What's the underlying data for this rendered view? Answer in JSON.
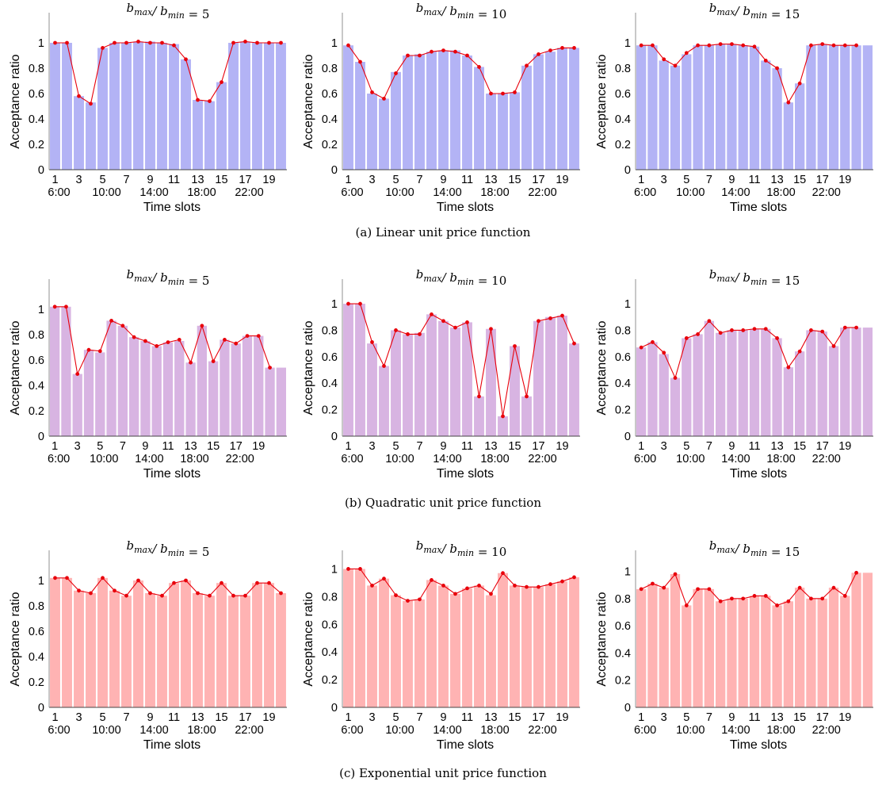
{
  "rows": [
    {
      "caption": "(a) Linear unit price function",
      "bar_color": "#b3b3f5",
      "charts": [
        {
          "title": "b_max / b_min = 5",
          "ratio": "5"
        },
        {
          "title": "b_max / b_min = 10",
          "ratio": "10"
        },
        {
          "title": "b_max / b_min = 15",
          "ratio": "15"
        }
      ]
    },
    {
      "caption": "(b) Quadratic unit price function",
      "bar_color": "#d8b4e2",
      "charts": [
        {
          "title": "b_max / b_min = 5",
          "ratio": "5"
        },
        {
          "title": "b_max / b_min = 10",
          "ratio": "10"
        },
        {
          "title": "b_max / b_min = 15",
          "ratio": "15"
        }
      ]
    },
    {
      "caption": "(c) Exponential unit price function",
      "bar_color": "#ffb3b3",
      "charts": [
        {
          "title": "b_max / b_min = 5",
          "ratio": "5"
        },
        {
          "title": "b_max / b_min = 10",
          "ratio": "10"
        },
        {
          "title": "b_max / b_min = 15",
          "ratio": "15"
        }
      ]
    }
  ],
  "line_color": "#e8000b",
  "chart_data": [
    {
      "type": "bar",
      "row": "(a) Linear unit price function",
      "title": "b_max / b_min = 5",
      "xlabel": "Time slots",
      "ylabel": "Acceptance ratio",
      "ylim": [
        0,
        1.2
      ],
      "yticks": [
        "0",
        "0.2",
        "0.4",
        "0.6",
        "0.8",
        "1"
      ],
      "xticks": [
        "1",
        "3",
        "5",
        "7",
        "9",
        "11",
        "13",
        "15",
        "17",
        "19"
      ],
      "xticks2": [
        "6:00",
        "10:00",
        "14:00",
        "18:00",
        "22:00"
      ],
      "categories": [
        1,
        2,
        3,
        4,
        5,
        6,
        7,
        8,
        9,
        10,
        11,
        12,
        13,
        14,
        15,
        16,
        17,
        18,
        19,
        20
      ],
      "values": [
        1.0,
        1.0,
        0.58,
        0.53,
        0.96,
        1.0,
        1.0,
        1.01,
        1.01,
        1.0,
        0.99,
        0.87,
        0.55,
        0.54,
        0.69,
        1.0,
        1.01,
        1.0,
        1.0,
        1.0
      ],
      "line": [
        1.0,
        1.0,
        0.58,
        0.52,
        0.96,
        1.0,
        1.0,
        1.01,
        1.0,
        1.0,
        0.98,
        0.87,
        0.55,
        0.54,
        0.69,
        1.0,
        1.01,
        1.0,
        1.0,
        1.0
      ]
    },
    {
      "type": "bar",
      "row": "(a) Linear unit price function",
      "title": "b_max / b_min = 10",
      "xlabel": "Time slots",
      "ylabel": "Acceptance ratio",
      "ylim": [
        0,
        1.2
      ],
      "yticks": [
        "0",
        "0.2",
        "0.4",
        "0.6",
        "0.8",
        "1"
      ],
      "xticks": [
        "1",
        "3",
        "5",
        "7",
        "9",
        "11",
        "13",
        "15",
        "17",
        "19"
      ],
      "xticks2": [
        "6:00",
        "10:00",
        "14:00",
        "18:00",
        "22:00"
      ],
      "categories": [
        1,
        2,
        3,
        4,
        5,
        6,
        7,
        8,
        9,
        10,
        11,
        12,
        13,
        14,
        15,
        16,
        17,
        18,
        19,
        20
      ],
      "values": [
        0.98,
        0.85,
        0.6,
        0.56,
        0.77,
        0.9,
        0.91,
        0.93,
        0.94,
        0.94,
        0.9,
        0.81,
        0.6,
        0.6,
        0.61,
        0.82,
        0.91,
        0.93,
        0.96,
        0.96
      ],
      "line": [
        0.98,
        0.85,
        0.61,
        0.56,
        0.76,
        0.9,
        0.9,
        0.93,
        0.94,
        0.93,
        0.9,
        0.81,
        0.6,
        0.6,
        0.61,
        0.82,
        0.91,
        0.94,
        0.96,
        0.96
      ]
    },
    {
      "type": "bar",
      "row": "(a) Linear unit price function",
      "title": "b_max / b_min = 15",
      "xlabel": "Time slots",
      "ylabel": "Acceptance ratio",
      "ylim": [
        0,
        1.2
      ],
      "yticks": [
        "0",
        "0.2",
        "0.4",
        "0.6",
        "0.8",
        "1"
      ],
      "xticks": [
        "1",
        "3",
        "5",
        "7",
        "9",
        "11",
        "13",
        "15",
        "17",
        "19"
      ],
      "xticks2": [
        "6:00",
        "10:00",
        "14:00",
        "18:00",
        "22:00"
      ],
      "categories": [
        1,
        2,
        3,
        4,
        5,
        6,
        7,
        8,
        9,
        10,
        11,
        12,
        13,
        14,
        15,
        16,
        17,
        18,
        19,
        20,
        21
      ],
      "values": [
        0.98,
        0.98,
        0.86,
        0.82,
        0.91,
        0.98,
        0.98,
        0.99,
        0.99,
        0.98,
        0.97,
        0.86,
        0.8,
        0.53,
        0.68,
        0.98,
        0.99,
        0.98,
        0.98,
        0.98,
        0.98
      ],
      "line": [
        0.98,
        0.98,
        0.87,
        0.82,
        0.92,
        0.98,
        0.98,
        0.99,
        0.99,
        0.98,
        0.97,
        0.86,
        0.8,
        0.53,
        0.68,
        0.98,
        0.99,
        0.98,
        0.98,
        0.98,
        null
      ]
    },
    {
      "type": "bar",
      "row": "(b) Quadratic unit price function",
      "title": "b_max / b_min = 5",
      "xlabel": "Time slots",
      "ylabel": "Acceptance ratio",
      "ylim": [
        0,
        1.2
      ],
      "yticks": [
        "0",
        "0.2",
        "0.4",
        "0.6",
        "0.8",
        "1"
      ],
      "xticks": [
        "1",
        "3",
        "5",
        "7",
        "9",
        "11",
        "13",
        "15",
        "17",
        "19"
      ],
      "xticks2": [
        "6:00",
        "10:00",
        "14:00",
        "18:00",
        "22:00"
      ],
      "categories": [
        1,
        2,
        3,
        4,
        5,
        6,
        7,
        8,
        9,
        10,
        11,
        12,
        13,
        14,
        15,
        16,
        17,
        18,
        19,
        20,
        21
      ],
      "values": [
        1.02,
        1.02,
        0.49,
        0.68,
        0.66,
        0.91,
        0.87,
        0.78,
        0.75,
        0.71,
        0.74,
        0.75,
        0.58,
        0.87,
        0.59,
        0.76,
        0.73,
        0.79,
        0.79,
        0.54,
        0.54
      ],
      "line": [
        1.02,
        1.02,
        0.49,
        0.68,
        0.67,
        0.91,
        0.87,
        0.78,
        0.75,
        0.71,
        0.74,
        0.76,
        0.58,
        0.87,
        0.59,
        0.76,
        0.73,
        0.79,
        0.79,
        0.54,
        null
      ]
    },
    {
      "type": "bar",
      "row": "(b) Quadratic unit price function",
      "title": "b_max / b_min = 10",
      "xlabel": "Time slots",
      "ylabel": "Acceptance ratio",
      "ylim": [
        0,
        1.15
      ],
      "yticks": [
        "0",
        "0.2",
        "0.4",
        "0.6",
        "0.8",
        "1"
      ],
      "xticks": [
        "1",
        "3",
        "5",
        "7",
        "9",
        "11",
        "13",
        "15",
        "17",
        "19"
      ],
      "xticks2": [
        "6:00",
        "10:00",
        "14:00",
        "18:00",
        "22:00"
      ],
      "categories": [
        1,
        2,
        3,
        4,
        5,
        6,
        7,
        8,
        9,
        10,
        11,
        12,
        13,
        14,
        15,
        16,
        17,
        18,
        19,
        20
      ],
      "values": [
        1.0,
        1.0,
        0.7,
        0.53,
        0.8,
        0.77,
        0.78,
        0.92,
        0.87,
        0.82,
        0.86,
        0.3,
        0.81,
        0.15,
        0.68,
        0.3,
        0.87,
        0.9,
        0.91,
        0.7
      ],
      "line": [
        1.0,
        1.0,
        0.71,
        0.53,
        0.8,
        0.77,
        0.77,
        0.92,
        0.87,
        0.82,
        0.86,
        0.3,
        0.81,
        0.15,
        0.68,
        0.3,
        0.87,
        0.89,
        0.91,
        0.7
      ]
    },
    {
      "type": "bar",
      "row": "(b) Quadratic unit price function",
      "title": "b_max / b_min = 15",
      "xlabel": "Time slots",
      "ylabel": "Acceptance ratio",
      "ylim": [
        0,
        1.15
      ],
      "yticks": [
        "0",
        "0.2",
        "0.4",
        "0.6",
        "0.8",
        "1"
      ],
      "xticks": [
        "1",
        "3",
        "5",
        "7",
        "9",
        "11",
        "13",
        "15",
        "17",
        "19"
      ],
      "xticks2": [
        "6:00",
        "10:00",
        "14:00",
        "18:00",
        "22:00"
      ],
      "categories": [
        1,
        2,
        3,
        4,
        5,
        6,
        7,
        8,
        9,
        10,
        11,
        12,
        13,
        14,
        15,
        16,
        17,
        18,
        19,
        20,
        21
      ],
      "values": [
        0.67,
        0.71,
        0.62,
        0.44,
        0.74,
        0.77,
        0.87,
        0.78,
        0.8,
        0.8,
        0.81,
        0.81,
        0.74,
        0.52,
        0.64,
        0.8,
        0.79,
        0.68,
        0.82,
        0.82,
        0.82
      ],
      "line": [
        0.67,
        0.71,
        0.63,
        0.44,
        0.74,
        0.77,
        0.87,
        0.78,
        0.8,
        0.8,
        0.81,
        0.81,
        0.74,
        0.52,
        0.64,
        0.8,
        0.79,
        0.68,
        0.82,
        0.82,
        null
      ]
    },
    {
      "type": "bar",
      "row": "(c) Exponential unit price function",
      "title": "b_max / b_min = 5",
      "xlabel": "Time slots",
      "ylabel": "Acceptance ratio",
      "ylim": [
        0,
        1.2
      ],
      "yticks": [
        "0",
        "0.2",
        "0.4",
        "0.6",
        "0.8",
        "1"
      ],
      "xticks": [
        "1",
        "3",
        "5",
        "7",
        "9",
        "11",
        "13",
        "15",
        "17",
        "19"
      ],
      "xticks2": [
        "6:00",
        "10:00",
        "14:00",
        "18:00",
        "22:00"
      ],
      "categories": [
        1,
        2,
        3,
        4,
        5,
        6,
        7,
        8,
        9,
        10,
        11,
        12,
        13,
        14,
        15,
        16,
        17,
        18,
        19,
        20
      ],
      "values": [
        1.02,
        1.02,
        0.92,
        0.9,
        1.02,
        0.92,
        0.88,
        1.0,
        0.9,
        0.88,
        0.98,
        1.0,
        0.9,
        0.88,
        0.98,
        0.88,
        0.88,
        0.98,
        0.98,
        0.9
      ],
      "line": [
        1.02,
        1.02,
        0.92,
        0.9,
        1.02,
        0.92,
        0.88,
        1.0,
        0.9,
        0.88,
        0.98,
        1.0,
        0.9,
        0.88,
        0.98,
        0.88,
        0.88,
        0.98,
        0.98,
        0.9
      ]
    },
    {
      "type": "bar",
      "row": "(c) Exponential unit price function",
      "title": "b_max / b_min = 10",
      "xlabel": "Time slots",
      "ylabel": "Acceptance ratio",
      "ylim": [
        0,
        1.1
      ],
      "yticks": [
        "0",
        "0.2",
        "0.4",
        "0.6",
        "0.8",
        "1"
      ],
      "xticks": [
        "1",
        "3",
        "5",
        "7",
        "9",
        "11",
        "13",
        "15",
        "17",
        "19"
      ],
      "xticks2": [
        "6:00",
        "10:00",
        "14:00",
        "18:00",
        "22:00"
      ],
      "categories": [
        1,
        2,
        3,
        4,
        5,
        6,
        7,
        8,
        9,
        10,
        11,
        12,
        13,
        14,
        15,
        16,
        17,
        18,
        19,
        20
      ],
      "values": [
        1.0,
        1.0,
        0.88,
        0.93,
        0.81,
        0.77,
        0.78,
        0.92,
        0.88,
        0.82,
        0.86,
        0.88,
        0.81,
        0.97,
        0.88,
        0.87,
        0.87,
        0.89,
        0.91,
        0.94
      ],
      "line": [
        1.0,
        1.0,
        0.88,
        0.93,
        0.81,
        0.77,
        0.78,
        0.92,
        0.88,
        0.82,
        0.86,
        0.88,
        0.82,
        0.97,
        0.88,
        0.87,
        0.87,
        0.89,
        0.91,
        0.94
      ]
    },
    {
      "type": "bar",
      "row": "(c) Exponential unit price function",
      "title": "b_max / b_min = 15",
      "xlabel": "Time slots",
      "ylabel": "Acceptance ratio",
      "ylim": [
        0,
        1.12
      ],
      "yticks": [
        "0",
        "0.2",
        "0.4",
        "0.6",
        "0.8",
        "1"
      ],
      "xticks": [
        "1",
        "3",
        "5",
        "7",
        "9",
        "11",
        "13",
        "15",
        "17",
        "19"
      ],
      "xticks2": [
        "6:00",
        "10:00",
        "14:00",
        "18:00",
        "22:00"
      ],
      "categories": [
        1,
        2,
        3,
        4,
        5,
        6,
        7,
        8,
        9,
        10,
        11,
        12,
        13,
        14,
        15,
        16,
        17,
        18,
        19,
        20,
        21
      ],
      "values": [
        0.87,
        0.91,
        0.88,
        0.98,
        0.75,
        0.87,
        0.87,
        0.78,
        0.8,
        0.8,
        0.82,
        0.82,
        0.75,
        0.78,
        0.88,
        0.8,
        0.8,
        0.88,
        0.82,
        0.99,
        0.99
      ],
      "line": [
        0.87,
        0.91,
        0.88,
        0.98,
        0.75,
        0.87,
        0.87,
        0.78,
        0.8,
        0.8,
        0.82,
        0.82,
        0.75,
        0.78,
        0.88,
        0.8,
        0.8,
        0.88,
        0.82,
        0.99,
        null
      ]
    }
  ]
}
